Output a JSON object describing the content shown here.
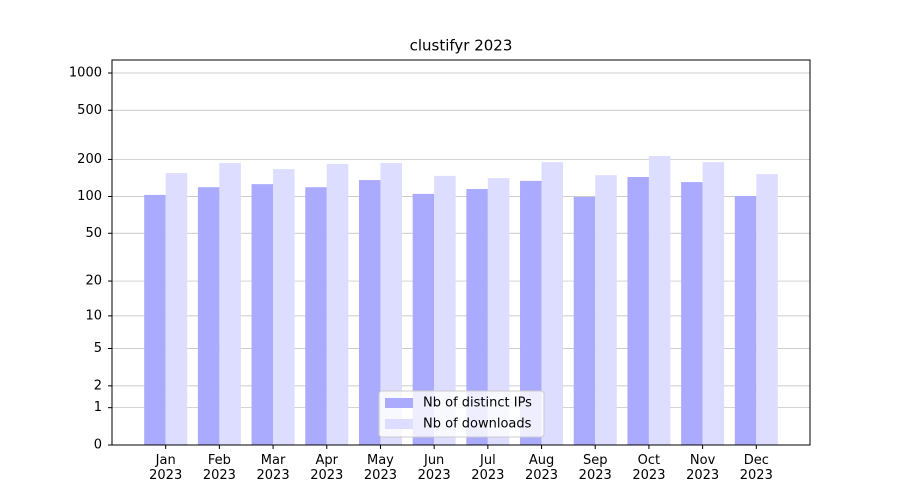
{
  "chart_data": {
    "type": "bar",
    "title": "clustifyr 2023",
    "categories": [
      "Jan 2023",
      "Feb 2023",
      "Mar 2023",
      "Apr 2023",
      "May 2023",
      "Jun 2023",
      "Jul 2023",
      "Aug 2023",
      "Sep 2023",
      "Oct 2023",
      "Nov 2023",
      "Dec 2023"
    ],
    "series": [
      {
        "name": "Nb of distinct IPs",
        "color": "#aaaaff",
        "values": [
          103,
          119,
          126,
          119,
          136,
          105,
          115,
          134,
          99,
          144,
          131,
          101
        ]
      },
      {
        "name": "Nb of downloads",
        "color": "#ddddff",
        "values": [
          155,
          187,
          167,
          184,
          187,
          147,
          141,
          190,
          149,
          213,
          190,
          152
        ]
      }
    ],
    "yscale": "log1p",
    "ylim": [
      0,
      1273
    ],
    "yticks": [
      0,
      1,
      2,
      5,
      10,
      20,
      50,
      100,
      200,
      500,
      1000
    ],
    "grid": true,
    "legend": "lower center"
  }
}
